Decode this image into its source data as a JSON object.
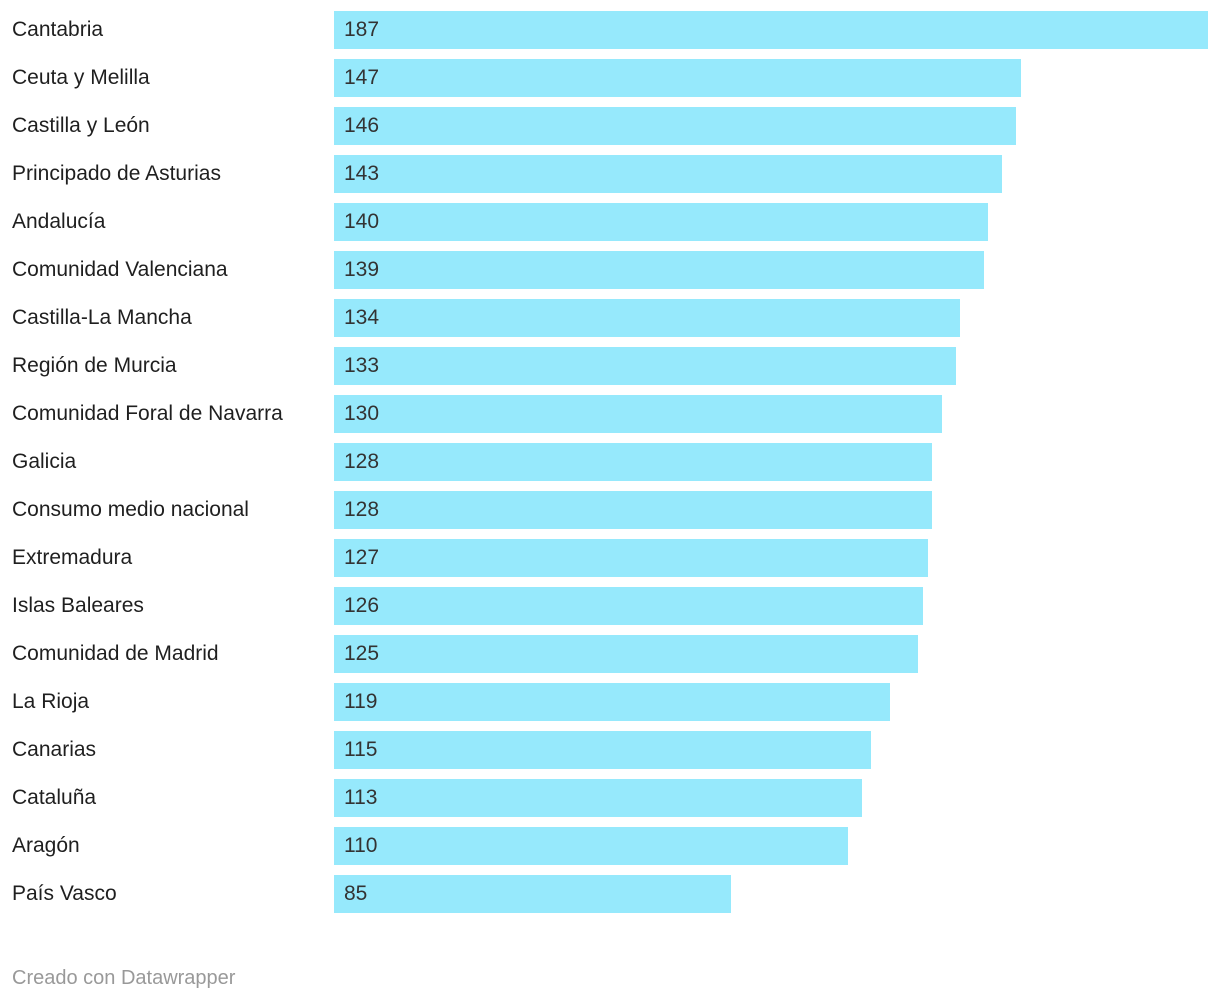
{
  "chart_data": {
    "type": "bar",
    "orientation": "horizontal",
    "title": "",
    "xlabel": "",
    "ylabel": "",
    "grid": false,
    "legend": false,
    "value_labels_position": "inside-start",
    "xlim": [
      0,
      187
    ],
    "bar_color": "#96e9fc",
    "category_label_color": "#1f1f1f",
    "value_label_color": "#333333",
    "categories": [
      "Cantabria",
      "Ceuta y Melilla",
      "Castilla y León",
      "Principado de Asturias",
      "Andalucía",
      "Comunidad Valenciana",
      "Castilla-La Mancha",
      "Región de Murcia",
      "Comunidad Foral de Navarra",
      "Galicia",
      "Consumo medio nacional",
      "Extremadura",
      "Islas Baleares",
      "Comunidad de Madrid",
      "La Rioja",
      "Canarias",
      "Cataluña",
      "Aragón",
      "País Vasco"
    ],
    "values": [
      187,
      147,
      146,
      143,
      140,
      139,
      134,
      133,
      130,
      128,
      128,
      127,
      126,
      125,
      119,
      115,
      113,
      110,
      85
    ]
  },
  "footer": {
    "attribution": "Creado con Datawrapper"
  }
}
